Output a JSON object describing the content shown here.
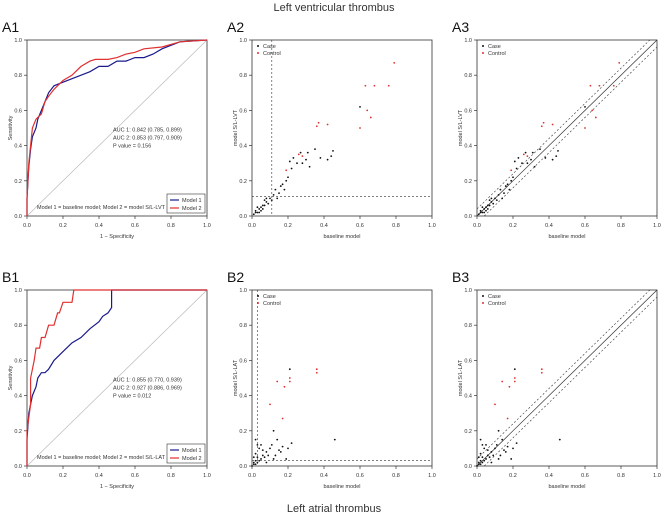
{
  "figure": {
    "top_title": "Left ventricular thrombus",
    "bottom_title": "Left atrial thrombus"
  },
  "chart_data": [
    {
      "id": "A1",
      "type": "line",
      "label": "A1",
      "xlabel": "1 − Specificity",
      "ylabel": "Sensitivity",
      "xlim": [
        0,
        1
      ],
      "ylim": [
        0,
        1
      ],
      "xticks": [
        "0.0",
        "0.2",
        "0.4",
        "0.6",
        "0.8",
        "1.0"
      ],
      "yticks": [
        "0.0",
        "0.2",
        "0.4",
        "0.6",
        "0.8",
        "1.0"
      ],
      "series": [
        {
          "name": "Model 1",
          "color": "#1a1a8c",
          "x": [
            0,
            0,
            0.01,
            0.02,
            0.03,
            0.05,
            0.06,
            0.08,
            0.1,
            0.12,
            0.15,
            0.2,
            0.25,
            0.3,
            0.35,
            0.4,
            0.45,
            0.5,
            0.55,
            0.6,
            0.65,
            0.7,
            0.75,
            0.8,
            0.85,
            1.0
          ],
          "y": [
            0,
            0.1,
            0.28,
            0.38,
            0.45,
            0.5,
            0.55,
            0.6,
            0.65,
            0.7,
            0.74,
            0.76,
            0.78,
            0.8,
            0.82,
            0.85,
            0.85,
            0.88,
            0.88,
            0.9,
            0.9,
            0.92,
            0.95,
            0.97,
            0.99,
            1.0
          ]
        },
        {
          "name": "Model 2",
          "color": "#e03030",
          "x": [
            0,
            0,
            0.01,
            0.02,
            0.03,
            0.05,
            0.08,
            0.1,
            0.12,
            0.15,
            0.2,
            0.25,
            0.3,
            0.35,
            0.38,
            0.45,
            0.5,
            0.55,
            0.6,
            0.65,
            0.75,
            0.85,
            1.0
          ],
          "y": [
            0,
            0.1,
            0.3,
            0.4,
            0.5,
            0.55,
            0.58,
            0.65,
            0.68,
            0.72,
            0.77,
            0.8,
            0.85,
            0.88,
            0.89,
            0.89,
            0.9,
            0.92,
            0.93,
            0.95,
            0.96,
            0.99,
            1.0
          ]
        }
      ],
      "annotations": [
        "AUC 1: 0.842 (0.785, 0.899)",
        "AUC 2: 0.853 (0.797, 0.909)",
        "P value = 0.156"
      ],
      "note": "Model 1 = baseline model; Model 2 = model S/L-LVT",
      "legend": [
        "Model 1",
        "Model 2"
      ]
    },
    {
      "id": "A2",
      "type": "scatter",
      "label": "A2",
      "xlabel": "baseline model",
      "ylabel": "model S/L-LVT",
      "xlim": [
        0,
        1
      ],
      "ylim": [
        0,
        1
      ],
      "xticks": [
        "0.0",
        "0.2",
        "0.4",
        "0.6",
        "0.8",
        "1.0"
      ],
      "yticks": [
        "0.0",
        "0.2",
        "0.4",
        "0.6",
        "0.8",
        "1.0"
      ],
      "cut_x": 0.11,
      "cut_y": 0.11,
      "legend": [
        "Case",
        "Control"
      ],
      "points_case": [
        [
          0.36,
          0.51
        ],
        [
          0.37,
          0.53
        ],
        [
          0.42,
          0.52
        ],
        [
          0.6,
          0.5
        ],
        [
          0.63,
          0.74
        ],
        [
          0.64,
          0.6
        ],
        [
          0.66,
          0.56
        ],
        [
          0.68,
          0.74
        ],
        [
          0.76,
          0.74
        ],
        [
          0.79,
          0.87
        ],
        [
          0.26,
          0.35
        ],
        [
          0.28,
          0.34
        ],
        [
          0.19,
          0.26
        ]
      ],
      "points_control": [
        [
          0.01,
          0.01
        ],
        [
          0.02,
          0.02
        ],
        [
          0.02,
          0.03
        ],
        [
          0.03,
          0.02
        ],
        [
          0.04,
          0.04
        ],
        [
          0.05,
          0.05
        ],
        [
          0.05,
          0.03
        ],
        [
          0.06,
          0.06
        ],
        [
          0.07,
          0.06
        ],
        [
          0.08,
          0.08
        ],
        [
          0.09,
          0.07
        ],
        [
          0.1,
          0.1
        ],
        [
          0.11,
          0.09
        ],
        [
          0.12,
          0.12
        ],
        [
          0.13,
          0.15
        ],
        [
          0.14,
          0.1
        ],
        [
          0.15,
          0.13
        ],
        [
          0.16,
          0.17
        ],
        [
          0.17,
          0.18
        ],
        [
          0.18,
          0.15
        ],
        [
          0.19,
          0.2
        ],
        [
          0.2,
          0.22
        ],
        [
          0.21,
          0.31
        ],
        [
          0.22,
          0.27
        ],
        [
          0.23,
          0.33
        ],
        [
          0.25,
          0.3
        ],
        [
          0.27,
          0.36
        ],
        [
          0.28,
          0.3
        ],
        [
          0.3,
          0.32
        ],
        [
          0.31,
          0.36
        ],
        [
          0.32,
          0.28
        ],
        [
          0.35,
          0.38
        ],
        [
          0.38,
          0.33
        ],
        [
          0.42,
          0.32
        ],
        [
          0.44,
          0.34
        ],
        [
          0.45,
          0.37
        ],
        [
          0.6,
          0.62
        ],
        [
          0.03,
          0.05
        ],
        [
          0.04,
          0.02
        ],
        [
          0.06,
          0.04
        ],
        [
          0.07,
          0.09
        ],
        [
          0.08,
          0.1
        ]
      ]
    },
    {
      "id": "A3",
      "type": "scatter",
      "label": "A3",
      "xlabel": "baseline model",
      "ylabel": "model S/L-LVT",
      "xlim": [
        0,
        1
      ],
      "ylim": [
        0,
        1
      ],
      "xticks": [
        "0.0",
        "0.2",
        "0.4",
        "0.6",
        "0.8",
        "1.0"
      ],
      "yticks": [
        "0.0",
        "0.2",
        "0.4",
        "0.6",
        "0.8",
        "1.0"
      ],
      "band": 0.04,
      "legend": [
        "Case",
        "Control"
      ],
      "points_case": [
        [
          0.36,
          0.51
        ],
        [
          0.37,
          0.53
        ],
        [
          0.42,
          0.52
        ],
        [
          0.6,
          0.5
        ],
        [
          0.63,
          0.74
        ],
        [
          0.64,
          0.6
        ],
        [
          0.66,
          0.56
        ],
        [
          0.68,
          0.74
        ],
        [
          0.76,
          0.74
        ],
        [
          0.79,
          0.87
        ],
        [
          0.26,
          0.35
        ],
        [
          0.28,
          0.34
        ],
        [
          0.19,
          0.26
        ]
      ],
      "points_control": [
        [
          0.01,
          0.01
        ],
        [
          0.02,
          0.02
        ],
        [
          0.02,
          0.03
        ],
        [
          0.03,
          0.02
        ],
        [
          0.04,
          0.04
        ],
        [
          0.05,
          0.05
        ],
        [
          0.05,
          0.03
        ],
        [
          0.06,
          0.06
        ],
        [
          0.07,
          0.06
        ],
        [
          0.08,
          0.08
        ],
        [
          0.09,
          0.07
        ],
        [
          0.1,
          0.1
        ],
        [
          0.11,
          0.09
        ],
        [
          0.12,
          0.12
        ],
        [
          0.13,
          0.15
        ],
        [
          0.14,
          0.1
        ],
        [
          0.15,
          0.13
        ],
        [
          0.16,
          0.17
        ],
        [
          0.17,
          0.18
        ],
        [
          0.18,
          0.15
        ],
        [
          0.19,
          0.2
        ],
        [
          0.2,
          0.22
        ],
        [
          0.21,
          0.31
        ],
        [
          0.22,
          0.27
        ],
        [
          0.23,
          0.33
        ],
        [
          0.25,
          0.3
        ],
        [
          0.27,
          0.36
        ],
        [
          0.28,
          0.3
        ],
        [
          0.3,
          0.32
        ],
        [
          0.31,
          0.36
        ],
        [
          0.32,
          0.28
        ],
        [
          0.35,
          0.38
        ],
        [
          0.38,
          0.33
        ],
        [
          0.42,
          0.32
        ],
        [
          0.44,
          0.34
        ],
        [
          0.45,
          0.37
        ],
        [
          0.6,
          0.62
        ],
        [
          0.03,
          0.05
        ],
        [
          0.04,
          0.02
        ],
        [
          0.06,
          0.04
        ],
        [
          0.07,
          0.09
        ],
        [
          0.08,
          0.1
        ]
      ]
    },
    {
      "id": "B1",
      "type": "line",
      "label": "B1",
      "xlabel": "1 − Specificity",
      "ylabel": "Sensitivity",
      "xlim": [
        0,
        1
      ],
      "ylim": [
        0,
        1
      ],
      "xticks": [
        "0.0",
        "0.2",
        "0.4",
        "0.6",
        "0.8",
        "1.0"
      ],
      "yticks": [
        "0.0",
        "0.2",
        "0.4",
        "0.6",
        "0.8",
        "1.0"
      ],
      "series": [
        {
          "name": "Model 1",
          "color": "#1a1a8c",
          "x": [
            0,
            0,
            0.01,
            0.02,
            0.03,
            0.05,
            0.06,
            0.08,
            0.1,
            0.12,
            0.15,
            0.2,
            0.25,
            0.3,
            0.35,
            0.4,
            0.42,
            0.45,
            0.47,
            0.47,
            1.0
          ],
          "y": [
            0,
            0.15,
            0.3,
            0.35,
            0.4,
            0.45,
            0.5,
            0.53,
            0.53,
            0.55,
            0.6,
            0.65,
            0.7,
            0.73,
            0.78,
            0.82,
            0.85,
            0.87,
            0.9,
            1.0,
            1.0
          ]
        },
        {
          "name": "Model 2",
          "color": "#e03030",
          "x": [
            0,
            0,
            0.02,
            0.02,
            0.03,
            0.04,
            0.05,
            0.07,
            0.08,
            0.1,
            0.12,
            0.13,
            0.15,
            0.17,
            0.18,
            0.2,
            0.22,
            0.25,
            0.26,
            1.0
          ],
          "y": [
            0,
            0.2,
            0.35,
            0.5,
            0.55,
            0.6,
            0.67,
            0.67,
            0.73,
            0.73,
            0.8,
            0.8,
            0.8,
            0.87,
            0.87,
            0.93,
            0.93,
            0.93,
            1.0,
            1.0
          ]
        }
      ],
      "annotations": [
        "AUC 1: 0.855 (0.770, 0.939)",
        "AUC 2: 0.927 (0.886, 0.969)",
        "P value = 0.012"
      ],
      "note": "Model 1 = baseline model; Model 2 = model S/L-LAT",
      "legend": [
        "Model 1",
        "Model 2"
      ]
    },
    {
      "id": "B2",
      "type": "scatter",
      "label": "B2",
      "xlabel": "baseline model",
      "ylabel": "model S/L-LAT",
      "xlim": [
        0,
        1
      ],
      "ylim": [
        0,
        1
      ],
      "xticks": [
        "0.0",
        "0.2",
        "0.4",
        "0.6",
        "0.8",
        "1.0"
      ],
      "yticks": [
        "0.0",
        "0.2",
        "0.4",
        "0.6",
        "0.8",
        "1.0"
      ],
      "cut_x": 0.03,
      "cut_y": 0.03,
      "legend": [
        "Case",
        "Control"
      ],
      "points_case": [
        [
          0.14,
          0.48
        ],
        [
          0.18,
          0.45
        ],
        [
          0.21,
          0.48
        ],
        [
          0.21,
          0.5
        ],
        [
          0.36,
          0.53
        ],
        [
          0.36,
          0.55
        ],
        [
          0.1,
          0.35
        ],
        [
          0.17,
          0.27
        ]
      ],
      "points_control": [
        [
          0.0,
          0.0
        ],
        [
          0.01,
          0.01
        ],
        [
          0.01,
          0.02
        ],
        [
          0.02,
          0.01
        ],
        [
          0.02,
          0.03
        ],
        [
          0.03,
          0.02
        ],
        [
          0.03,
          0.05
        ],
        [
          0.04,
          0.03
        ],
        [
          0.05,
          0.04
        ],
        [
          0.06,
          0.06
        ],
        [
          0.07,
          0.05
        ],
        [
          0.08,
          0.08
        ],
        [
          0.09,
          0.06
        ],
        [
          0.1,
          0.1
        ],
        [
          0.11,
          0.12
        ],
        [
          0.12,
          0.2
        ],
        [
          0.14,
          0.15
        ],
        [
          0.15,
          0.09
        ],
        [
          0.17,
          0.11
        ],
        [
          0.2,
          0.1
        ],
        [
          0.21,
          0.55
        ],
        [
          0.22,
          0.13
        ],
        [
          0.46,
          0.15
        ],
        [
          0.02,
          0.07
        ],
        [
          0.04,
          0.1
        ],
        [
          0.05,
          0.12
        ],
        [
          0.02,
          0.15
        ],
        [
          0.08,
          0.02
        ],
        [
          0.12,
          0.04
        ],
        [
          0.13,
          0.06
        ],
        [
          0.16,
          0.08
        ],
        [
          0.19,
          0.04
        ],
        [
          0.06,
          0.09
        ],
        [
          0.03,
          0.12
        ],
        [
          0.01,
          0.05
        ]
      ]
    },
    {
      "id": "B3",
      "type": "scatter",
      "label": "B3",
      "xlabel": "baseline model",
      "ylabel": "model S/L-LAT",
      "xlim": [
        0,
        1
      ],
      "ylim": [
        0,
        1
      ],
      "xticks": [
        "0.0",
        "0.2",
        "0.4",
        "0.6",
        "0.8",
        "1.0"
      ],
      "yticks": [
        "0.0",
        "0.2",
        "0.4",
        "0.6",
        "0.8",
        "1.0"
      ],
      "band": 0.04,
      "legend": [
        "Case",
        "Control"
      ],
      "points_case": [
        [
          0.14,
          0.48
        ],
        [
          0.18,
          0.45
        ],
        [
          0.21,
          0.48
        ],
        [
          0.21,
          0.5
        ],
        [
          0.36,
          0.53
        ],
        [
          0.36,
          0.55
        ],
        [
          0.1,
          0.35
        ],
        [
          0.17,
          0.27
        ]
      ],
      "points_control": [
        [
          0.0,
          0.0
        ],
        [
          0.01,
          0.01
        ],
        [
          0.01,
          0.02
        ],
        [
          0.02,
          0.01
        ],
        [
          0.02,
          0.03
        ],
        [
          0.03,
          0.02
        ],
        [
          0.03,
          0.05
        ],
        [
          0.04,
          0.03
        ],
        [
          0.05,
          0.04
        ],
        [
          0.06,
          0.06
        ],
        [
          0.07,
          0.05
        ],
        [
          0.08,
          0.08
        ],
        [
          0.09,
          0.06
        ],
        [
          0.1,
          0.1
        ],
        [
          0.11,
          0.12
        ],
        [
          0.12,
          0.2
        ],
        [
          0.14,
          0.15
        ],
        [
          0.15,
          0.09
        ],
        [
          0.17,
          0.11
        ],
        [
          0.2,
          0.1
        ],
        [
          0.21,
          0.55
        ],
        [
          0.22,
          0.13
        ],
        [
          0.46,
          0.15
        ],
        [
          0.02,
          0.07
        ],
        [
          0.04,
          0.1
        ],
        [
          0.05,
          0.12
        ],
        [
          0.02,
          0.15
        ],
        [
          0.08,
          0.02
        ],
        [
          0.12,
          0.04
        ],
        [
          0.13,
          0.06
        ],
        [
          0.16,
          0.08
        ],
        [
          0.19,
          0.04
        ],
        [
          0.06,
          0.09
        ],
        [
          0.03,
          0.12
        ],
        [
          0.01,
          0.05
        ]
      ]
    }
  ]
}
